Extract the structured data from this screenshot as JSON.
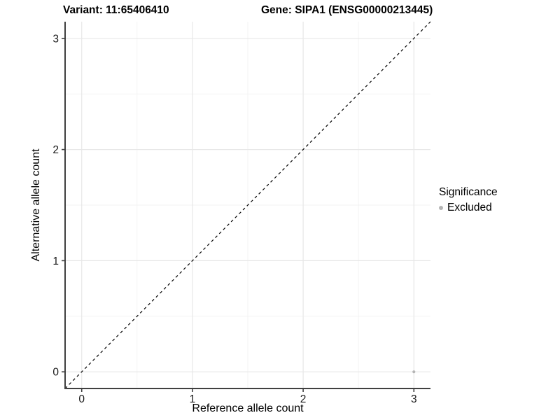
{
  "header": {
    "title_left": "Variant: 11:65406410",
    "title_right": "Gene: SIPA1 (ENSG00000213445)"
  },
  "legend": {
    "title": "Significance",
    "items": [
      {
        "label": "Excluded",
        "color": "#b5b5b5"
      }
    ]
  },
  "axes": {
    "xlabel": "Reference allele count",
    "ylabel": "Alternative allele count"
  },
  "chart_data": {
    "type": "scatter",
    "title": "Variant: 11:65406410 — Gene: SIPA1 (ENSG00000213445)",
    "xlabel": "Reference allele count",
    "ylabel": "Alternative allele count",
    "xlim": [
      -0.15,
      3.15
    ],
    "ylim": [
      -0.15,
      3.15
    ],
    "xticks": [
      "0",
      "1",
      "2",
      "3"
    ],
    "xtick_values": [
      0,
      1,
      2,
      3
    ],
    "yticks": [
      "0",
      "1",
      "2",
      "3"
    ],
    "ytick_values": [
      0,
      1,
      2,
      3
    ],
    "xminor": [
      0.5,
      1.5,
      2.5
    ],
    "yminor": [
      0.5,
      1.5,
      2.5
    ],
    "grid": true,
    "legend_position": "right",
    "series": [
      {
        "name": "Excluded",
        "color": "#b5b5b5",
        "points": [
          {
            "x": 3,
            "y": 0
          }
        ]
      }
    ],
    "reference_line": {
      "type": "identity",
      "slope": 1,
      "intercept": 0,
      "style": "dashed",
      "color": "#000000"
    },
    "colors": {
      "grid_major": "#e7e7e7",
      "grid_minor": "#f2f2f2",
      "axis": "#404040",
      "tick_label": "#1a1a1a",
      "point": "#b5b5b5"
    }
  }
}
